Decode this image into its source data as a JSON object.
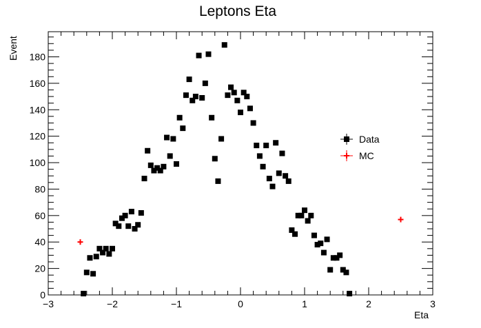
{
  "chart_data": {
    "type": "scatter",
    "title": "Leptons Eta",
    "xlabel": "Eta",
    "ylabel": "Event",
    "xlim": [
      -3,
      3
    ],
    "ylim": [
      0,
      199
    ],
    "x_ticks": [
      -3,
      -2,
      -1,
      0,
      1,
      2,
      3
    ],
    "x_tick_labels": [
      "−3",
      "−2",
      "−1",
      "0",
      "1",
      "2",
      "3"
    ],
    "y_ticks": [
      0,
      20,
      40,
      60,
      80,
      100,
      120,
      140,
      160,
      180
    ],
    "y_tick_labels": [
      "0",
      "20",
      "40",
      "60",
      "80",
      "100",
      "120",
      "140",
      "160",
      "180"
    ],
    "grid": false,
    "legend": "right",
    "series": [
      {
        "name": "Data",
        "color": "#000000",
        "marker": "square",
        "points": [
          [
            -2.45,
            1
          ],
          [
            -2.4,
            17
          ],
          [
            -2.35,
            28
          ],
          [
            -2.3,
            16
          ],
          [
            -2.25,
            29
          ],
          [
            -2.2,
            35
          ],
          [
            -2.15,
            32
          ],
          [
            -2.1,
            35
          ],
          [
            -2.05,
            31
          ],
          [
            -2.0,
            35
          ],
          [
            -1.95,
            54
          ],
          [
            -1.9,
            52
          ],
          [
            -1.85,
            58
          ],
          [
            -1.8,
            60
          ],
          [
            -1.75,
            52
          ],
          [
            -1.7,
            63
          ],
          [
            -1.65,
            50
          ],
          [
            -1.6,
            53
          ],
          [
            -1.55,
            62
          ],
          [
            -1.5,
            88
          ],
          [
            -1.45,
            109
          ],
          [
            -1.4,
            98
          ],
          [
            -1.35,
            94
          ],
          [
            -1.3,
            96
          ],
          [
            -1.25,
            94
          ],
          [
            -1.2,
            97
          ],
          [
            -1.15,
            119
          ],
          [
            -1.1,
            105
          ],
          [
            -1.05,
            118
          ],
          [
            -1.0,
            99
          ],
          [
            -0.95,
            134
          ],
          [
            -0.9,
            126
          ],
          [
            -0.85,
            151
          ],
          [
            -0.8,
            163
          ],
          [
            -0.75,
            147
          ],
          [
            -0.7,
            150
          ],
          [
            -0.65,
            181
          ],
          [
            -0.6,
            149
          ],
          [
            -0.55,
            160
          ],
          [
            -0.5,
            182
          ],
          [
            -0.45,
            134
          ],
          [
            -0.4,
            103
          ],
          [
            -0.35,
            86
          ],
          [
            -0.3,
            118
          ],
          [
            -0.25,
            189
          ],
          [
            -0.2,
            151
          ],
          [
            -0.15,
            157
          ],
          [
            -0.1,
            153
          ],
          [
            -0.05,
            147
          ],
          [
            0.0,
            138
          ],
          [
            0.05,
            153
          ],
          [
            0.1,
            150
          ],
          [
            0.15,
            141
          ],
          [
            0.2,
            130
          ],
          [
            0.25,
            113
          ],
          [
            0.3,
            105
          ],
          [
            0.35,
            97
          ],
          [
            0.4,
            113
          ],
          [
            0.45,
            88
          ],
          [
            0.5,
            82
          ],
          [
            0.55,
            115
          ],
          [
            0.6,
            92
          ],
          [
            0.65,
            107
          ],
          [
            0.7,
            90
          ],
          [
            0.75,
            86
          ],
          [
            0.8,
            49
          ],
          [
            0.85,
            46
          ],
          [
            0.9,
            60
          ],
          [
            0.95,
            60
          ],
          [
            1.0,
            64
          ],
          [
            1.05,
            56
          ],
          [
            1.1,
            60
          ],
          [
            1.15,
            45
          ],
          [
            1.2,
            38
          ],
          [
            1.25,
            39
          ],
          [
            1.3,
            32
          ],
          [
            1.35,
            42
          ],
          [
            1.4,
            19
          ],
          [
            1.45,
            28
          ],
          [
            1.5,
            28
          ],
          [
            1.55,
            30
          ],
          [
            1.6,
            19
          ],
          [
            1.65,
            17
          ],
          [
            1.7,
            1
          ]
        ]
      },
      {
        "name": "MC",
        "color": "#ff0000",
        "marker": "plus",
        "points": [
          [
            -2.5,
            40
          ],
          [
            2.5,
            57
          ]
        ]
      }
    ]
  }
}
